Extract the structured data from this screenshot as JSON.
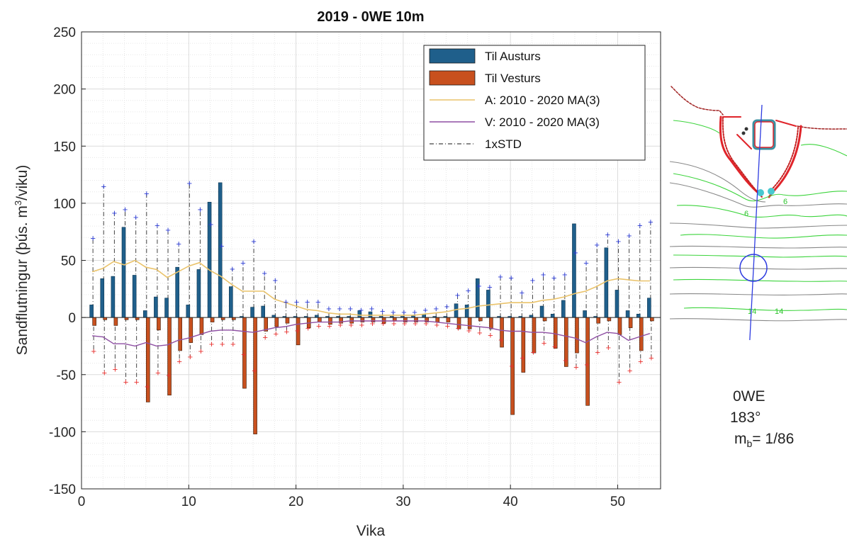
{
  "chart_data": {
    "type": "bar",
    "title": "2019 - 0WE 10m",
    "xlabel": "Vika",
    "ylabel_main": "Sandflutningur (þús. m",
    "ylabel_sup": "3",
    "ylabel_tail": "/viku)",
    "xlim": [
      0,
      54
    ],
    "ylim": [
      -150,
      250
    ],
    "xticks": [
      0,
      10,
      20,
      30,
      40,
      50
    ],
    "yticks": [
      -150,
      -100,
      -50,
      0,
      50,
      100,
      150,
      200,
      250
    ],
    "grid": "on (major and minor)",
    "legend_position": "top-right",
    "colors": {
      "austurs": "#1f5f8b",
      "vesturs": "#c8501e",
      "ma_a": "#eac36b",
      "ma_v": "#8e4fa3",
      "std": "#444444",
      "std_marker_a": "#2b3bd4",
      "std_marker_v": "#e8312f"
    },
    "legend": [
      {
        "label": "Til Austurs",
        "kind": "bar",
        "color": "#1f5f8b"
      },
      {
        "label": "Til Vesturs",
        "kind": "bar",
        "color": "#c8501e"
      },
      {
        "label": "A: 2010 - 2020 MA(3)",
        "kind": "line",
        "color": "#eac36b"
      },
      {
        "label": "V: 2010 - 2020 MA(3)",
        "kind": "line",
        "color": "#8e4fa3"
      },
      {
        "label": "1xSTD",
        "kind": "dashdot",
        "color": "#444444"
      }
    ],
    "weeks": [
      1,
      2,
      3,
      4,
      5,
      6,
      7,
      8,
      9,
      10,
      11,
      12,
      13,
      14,
      15,
      16,
      17,
      18,
      19,
      20,
      21,
      22,
      23,
      24,
      25,
      26,
      27,
      28,
      29,
      30,
      31,
      32,
      33,
      34,
      35,
      36,
      37,
      38,
      39,
      40,
      41,
      42,
      43,
      44,
      45,
      46,
      47,
      48,
      49,
      50,
      51,
      52,
      53
    ],
    "series": [
      {
        "name": "Til Austurs",
        "values": [
          11,
          34,
          36,
          79,
          37,
          6,
          18,
          17,
          44,
          11,
          42,
          101,
          118,
          27,
          1,
          9,
          10,
          2,
          1,
          1,
          1,
          2,
          1,
          1,
          1,
          6,
          5,
          1,
          1,
          1,
          2,
          3,
          1,
          1,
          12,
          11,
          34,
          24,
          1,
          1,
          1,
          2,
          10,
          3,
          15,
          82,
          6,
          1,
          61,
          24,
          6,
          3,
          17
        ]
      },
      {
        "name": "Til Vesturs",
        "values": [
          -7,
          -2,
          -7,
          -2,
          -2,
          -74,
          -11,
          -68,
          -29,
          -22,
          -15,
          -4,
          -2,
          -2,
          -62,
          -102,
          -12,
          -8,
          -5,
          -24,
          -9,
          -4,
          -6,
          -5,
          -5,
          -4,
          -4,
          -5,
          -3,
          -4,
          -4,
          -4,
          -4,
          -4,
          -10,
          -10,
          -3,
          -10,
          -26,
          -85,
          -48,
          -31,
          -3,
          -27,
          -43,
          -31,
          -77,
          -5,
          -3,
          -15,
          -9,
          -29,
          -3
        ]
      },
      {
        "name": "A: 2010 - 2020 MA(3)",
        "values": [
          40,
          43,
          49,
          46,
          50,
          44,
          42,
          35,
          40,
          45,
          48,
          41,
          36,
          29,
          23,
          23,
          23,
          16,
          13,
          10,
          7,
          6,
          4,
          3,
          3,
          2,
          2,
          2,
          2,
          2,
          2,
          3,
          4,
          5,
          7,
          8,
          10,
          11,
          12,
          13,
          13,
          13,
          15,
          16,
          18,
          21,
          23,
          27,
          32,
          34,
          33,
          32,
          32
        ]
      },
      {
        "name": "V: 2010 - 2020 MA(3)",
        "values": [
          -16,
          -17,
          -23,
          -23,
          -25,
          -22,
          -25,
          -24,
          -20,
          -18,
          -15,
          -12,
          -11,
          -11,
          -12,
          -13,
          -11,
          -9,
          -8,
          -6,
          -5,
          -4,
          -4,
          -4,
          -3,
          -3,
          -3,
          -3,
          -3,
          -3,
          -3,
          -3,
          -4,
          -5,
          -6,
          -7,
          -8,
          -9,
          -11,
          -12,
          -12,
          -13,
          -13,
          -14,
          -16,
          -18,
          -22,
          -17,
          -13,
          -14,
          -20,
          -17,
          -14
        ]
      },
      {
        "name": "1xSTD",
        "part": "Til Austurs",
        "values": [
          70,
          115,
          92,
          95,
          88,
          109,
          81,
          77,
          65,
          118,
          95,
          82,
          63,
          43,
          48,
          67,
          39,
          33,
          14,
          14,
          14,
          14,
          8,
          8,
          8,
          7,
          8,
          6,
          5,
          5,
          5,
          7,
          8,
          10,
          20,
          24,
          28,
          27,
          36,
          35,
          22,
          33,
          38,
          35,
          38,
          57,
          48,
          64,
          73,
          67,
          72,
          81,
          84
        ]
      },
      {
        "name": "1xSTD",
        "part": "Til Vesturs",
        "values": [
          -29,
          -48,
          -45,
          -56,
          -56,
          -60,
          -48,
          -50,
          -38,
          -34,
          -29,
          -23,
          -23,
          -23,
          -32,
          -46,
          -17,
          -14,
          -12,
          -11,
          -9,
          -7,
          -7,
          -6,
          -6,
          -6,
          -5,
          -5,
          -5,
          -5,
          -5,
          -5,
          -6,
          -7,
          -9,
          -11,
          -13,
          -15,
          -19,
          -42,
          -35,
          -30,
          -22,
          -25,
          -37,
          -43,
          -41,
          -30,
          -26,
          -56,
          -46,
          -38,
          -35
        ]
      }
    ]
  },
  "map": {
    "name": "0WE",
    "angle": "183°",
    "slope_prefix": "m",
    "slope_sub": "b",
    "slope_value": "= 1/86",
    "contour_labels": [
      "6",
      "6",
      "14",
      "14"
    ]
  }
}
